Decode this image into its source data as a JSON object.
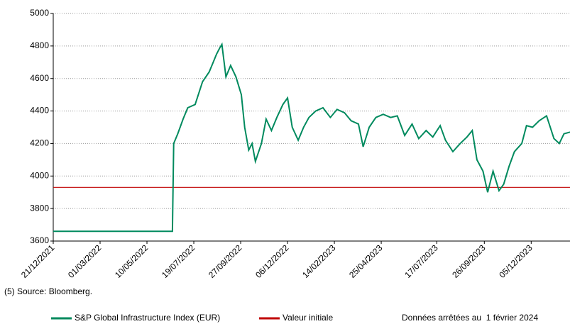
{
  "chart_data": {
    "type": "line",
    "note": "(5) Source: Bloomberg.",
    "date_note": "Données arrêtées au  1 février 2024",
    "xlim": [
      "21/12/2021",
      "01/02/2024"
    ],
    "xticks": [
      "21/12/2021",
      "01/03/2022",
      "10/05/2022",
      "19/07/2022",
      "27/09/2022",
      "06/12/2022",
      "14/02/2023",
      "25/04/2023",
      "17/07/2023",
      "26/09/2023",
      "05/12/2023"
    ],
    "ylim": [
      3600,
      5000
    ],
    "yticks": [
      3600,
      3800,
      4000,
      4200,
      4400,
      4600,
      4800,
      5000
    ],
    "grid": true,
    "legend": "bottom",
    "series": [
      {
        "name": "S&P Global Infrastructure Index (EUR)",
        "color": "#008a5e",
        "x": [
          "21/12/2021",
          "17/06/2022",
          "19/06/2022",
          "25/06/2022",
          "03/07/2022",
          "10/07/2022",
          "21/07/2022",
          "01/08/2022",
          "11/08/2022",
          "17/08/2022",
          "22/08/2022",
          "27/08/2022",
          "30/08/2022",
          "05/09/2022",
          "12/09/2022",
          "20/09/2022",
          "28/09/2022",
          "03/10/2022",
          "09/10/2022",
          "14/10/2022",
          "19/10/2022",
          "28/10/2022",
          "04/11/2022",
          "12/11/2022",
          "20/11/2022",
          "29/11/2022",
          "06/12/2022",
          "13/12/2022",
          "22/12/2022",
          "30/12/2022",
          "07/01/2023",
          "17/01/2023",
          "28/01/2023",
          "08/02/2023",
          "18/02/2023",
          "01/03/2023",
          "11/03/2023",
          "22/03/2023",
          "29/03/2023",
          "07/04/2023",
          "17/04/2023",
          "28/04/2023",
          "09/05/2023",
          "19/05/2023",
          "30/05/2023",
          "10/06/2023",
          "20/06/2023",
          "01/07/2023",
          "11/07/2023",
          "22/07/2023",
          "30/07/2023",
          "10/08/2023",
          "21/08/2023",
          "31/08/2023",
          "08/09/2023",
          "15/09/2023",
          "24/09/2023",
          "01/10/2023",
          "09/10/2023",
          "18/10/2023",
          "25/10/2023",
          "02/11/2023",
          "10/11/2023",
          "21/11/2023",
          "28/11/2023",
          "07/12/2023",
          "17/12/2023",
          "28/12/2023",
          "08/01/2024",
          "16/01/2024",
          "23/01/2024",
          "01/02/2024"
        ],
        "values": [
          3660,
          3660,
          4200,
          4260,
          4350,
          4420,
          4440,
          4580,
          4640,
          4700,
          4750,
          4790,
          4810,
          4610,
          4680,
          4610,
          4500,
          4300,
          4160,
          4200,
          4090,
          4200,
          4350,
          4280,
          4360,
          4440,
          4480,
          4300,
          4220,
          4300,
          4360,
          4400,
          4420,
          4360,
          4410,
          4390,
          4340,
          4320,
          4180,
          4300,
          4360,
          4380,
          4360,
          4370,
          4250,
          4320,
          4230,
          4280,
          4240,
          4310,
          4220,
          4150,
          4200,
          4240,
          4280,
          4100,
          4030,
          3900,
          4030,
          3910,
          3950,
          4060,
          4150,
          4200,
          4310,
          4300,
          4340,
          4370,
          4230,
          4200,
          4260,
          4270
        ]
      },
      {
        "name": "Valeur initiale",
        "color": "#c00000",
        "x": [
          "21/12/2021",
          "01/02/2024"
        ],
        "values": [
          3930,
          3930
        ]
      }
    ]
  }
}
